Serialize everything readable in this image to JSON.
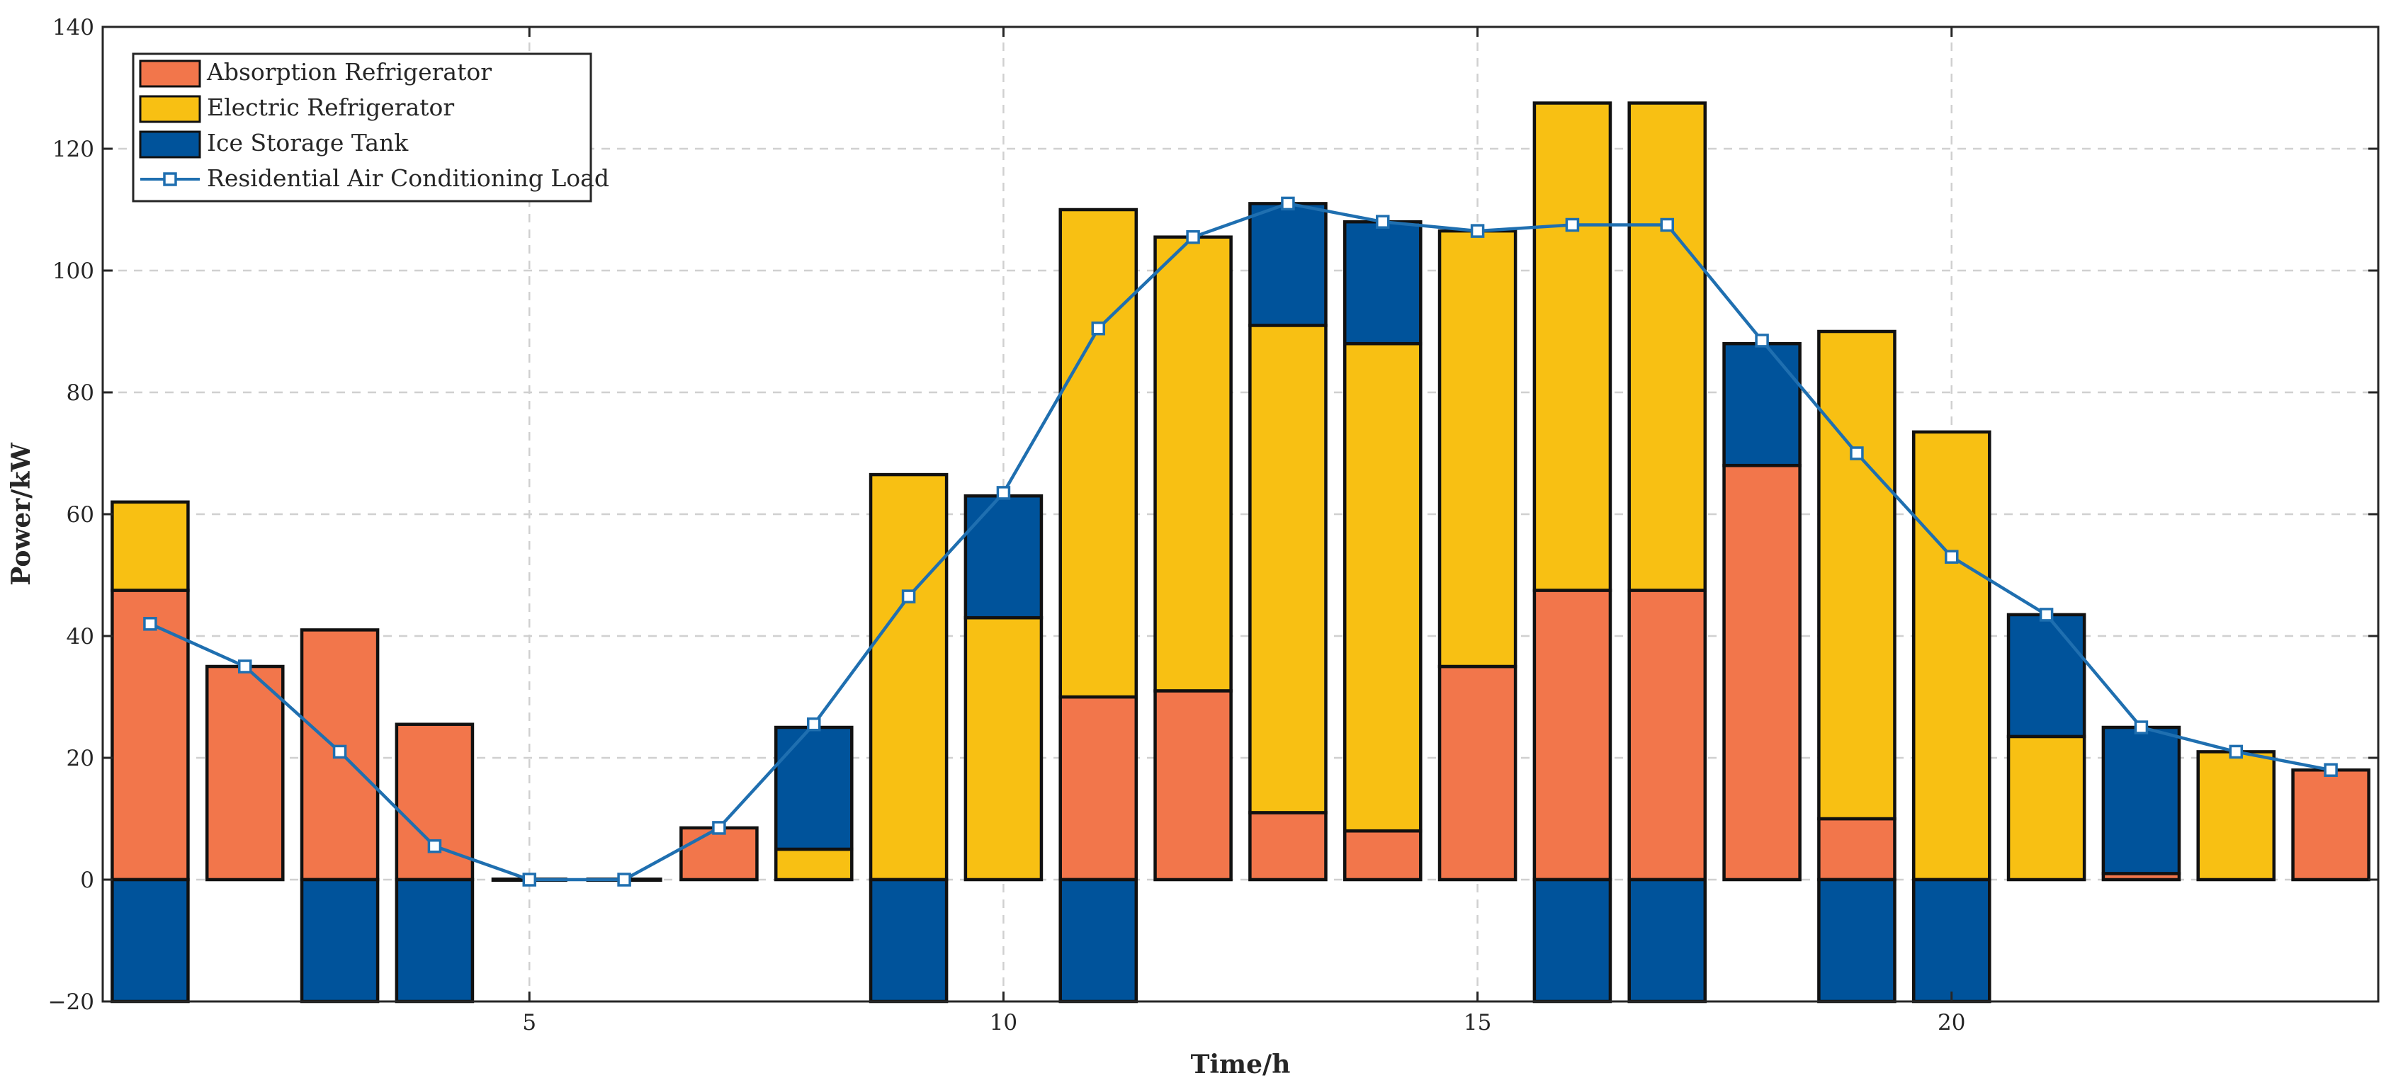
{
  "chart_data": {
    "type": "bar",
    "subtype": "stacked-bar-with-line",
    "title": "",
    "xlabel": "Time/h",
    "ylabel": "Power/kW",
    "xlim": [
      0.5,
      24.5
    ],
    "ylim": [
      -20,
      140
    ],
    "xticks": [
      5,
      10,
      15,
      20
    ],
    "yticks": [
      -20,
      0,
      20,
      40,
      60,
      80,
      100,
      120,
      140
    ],
    "grid": true,
    "legend_position": "top-left",
    "x": [
      1,
      2,
      3,
      4,
      5,
      6,
      7,
      8,
      9,
      10,
      11,
      12,
      13,
      14,
      15,
      16,
      17,
      18,
      19,
      20,
      21,
      22,
      23,
      24
    ],
    "series": [
      {
        "name": "Absorption Refrigerator",
        "kind": "bar",
        "color": "#f2764b",
        "values": [
          47.5,
          35,
          41,
          25.5,
          0,
          0,
          8.5,
          0,
          0,
          0,
          30,
          31,
          11,
          8,
          35,
          47.5,
          47.5,
          68,
          10,
          0,
          0,
          1,
          0,
          18
        ]
      },
      {
        "name": "Electric Refrigerator",
        "kind": "bar",
        "color": "#f8c013",
        "values": [
          14.5,
          0,
          0,
          0,
          0,
          0,
          0,
          5,
          66.5,
          43,
          80,
          74.5,
          80,
          80,
          71.5,
          80,
          80,
          0,
          80,
          73.5,
          23.5,
          0,
          21,
          0
        ]
      },
      {
        "name": "Ice Storage Tank",
        "kind": "bar",
        "color": "#00539b",
        "values": [
          -20,
          0,
          -20,
          -20,
          0,
          0,
          0,
          20,
          -20,
          20,
          -20,
          0,
          20,
          20,
          0,
          -20,
          -20,
          20,
          -20,
          -20,
          20,
          24,
          0,
          0
        ]
      },
      {
        "name": "Residential Air Conditioning Load",
        "kind": "line",
        "color": "#1f6fb0",
        "marker": "square",
        "values": [
          42,
          35,
          21,
          5.5,
          0,
          0,
          8.5,
          25.5,
          46.5,
          63.5,
          90.5,
          105.5,
          111,
          108,
          106.5,
          107.5,
          107.5,
          88.5,
          70,
          53,
          43.5,
          25,
          21,
          18
        ]
      }
    ]
  }
}
